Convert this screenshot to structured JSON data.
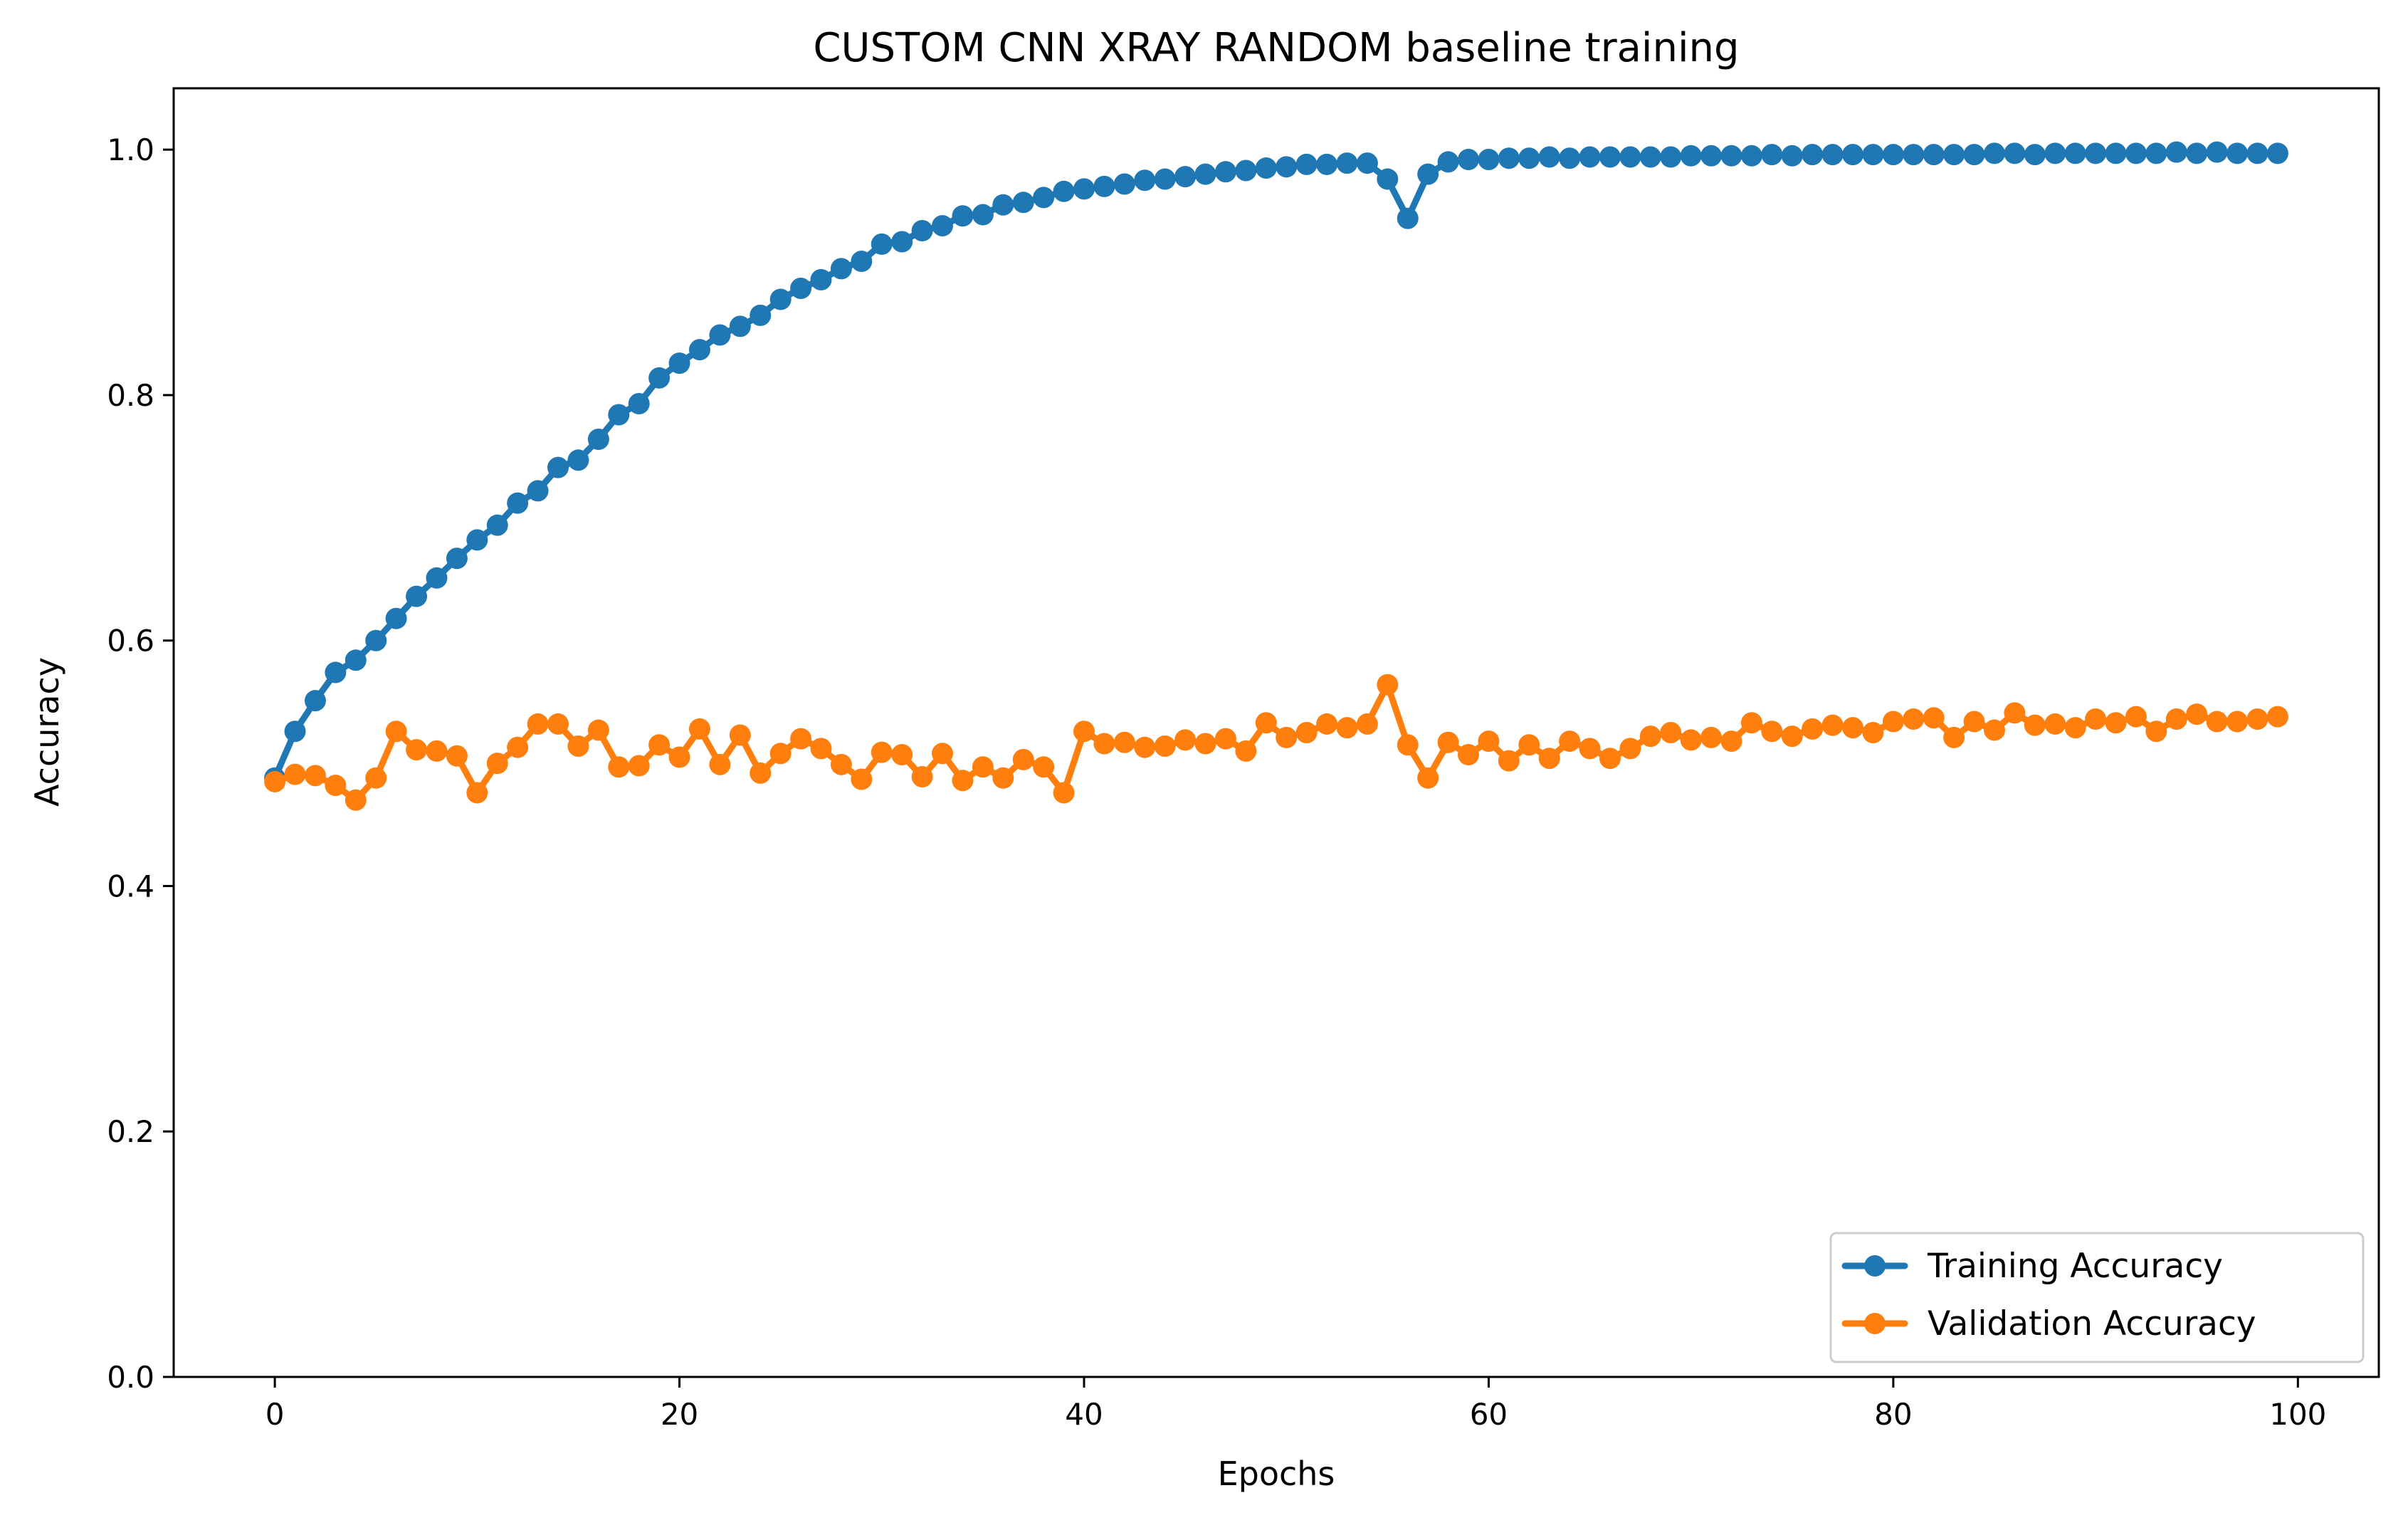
{
  "chart_data": {
    "type": "line",
    "title": "CUSTOM CNN XRAY RANDOM baseline training",
    "xlabel": "Epochs",
    "ylabel": "Accuracy",
    "xlim": [
      -5,
      104
    ],
    "ylim": [
      0,
      1.05
    ],
    "xticks": [
      0,
      20,
      40,
      60,
      80,
      100
    ],
    "yticks": [
      0.0,
      0.2,
      0.4,
      0.6,
      0.8,
      1.0
    ],
    "xtick_labels": [
      "0",
      "20",
      "40",
      "60",
      "80",
      "100"
    ],
    "ytick_labels": [
      "0.0",
      "0.2",
      "0.4",
      "0.6",
      "0.8",
      "1.0"
    ],
    "grid": false,
    "legend_position": "lower-right",
    "x": [
      0,
      1,
      2,
      3,
      4,
      5,
      6,
      7,
      8,
      9,
      10,
      11,
      12,
      13,
      14,
      15,
      16,
      17,
      18,
      19,
      20,
      21,
      22,
      23,
      24,
      25,
      26,
      27,
      28,
      29,
      30,
      31,
      32,
      33,
      34,
      35,
      36,
      37,
      38,
      39,
      40,
      41,
      42,
      43,
      44,
      45,
      46,
      47,
      48,
      49,
      50,
      51,
      52,
      53,
      54,
      55,
      56,
      57,
      58,
      59,
      60,
      61,
      62,
      63,
      64,
      65,
      66,
      67,
      68,
      69,
      70,
      71,
      72,
      73,
      74,
      75,
      76,
      77,
      78,
      79,
      80,
      81,
      82,
      83,
      84,
      85,
      86,
      87,
      88,
      89,
      90,
      91,
      92,
      93,
      94,
      95,
      96,
      97,
      98,
      99
    ],
    "series": [
      {
        "name": "Training Accuracy",
        "color": "#1f77b4",
        "marker": "circle",
        "values": [
          0.488,
          0.526,
          0.551,
          0.574,
          0.584,
          0.6,
          0.618,
          0.636,
          0.651,
          0.667,
          0.682,
          0.694,
          0.712,
          0.722,
          0.741,
          0.747,
          0.764,
          0.784,
          0.793,
          0.814,
          0.826,
          0.837,
          0.849,
          0.856,
          0.865,
          0.878,
          0.887,
          0.894,
          0.903,
          0.909,
          0.923,
          0.925,
          0.934,
          0.938,
          0.946,
          0.947,
          0.955,
          0.957,
          0.961,
          0.966,
          0.968,
          0.97,
          0.972,
          0.975,
          0.976,
          0.978,
          0.98,
          0.982,
          0.983,
          0.985,
          0.986,
          0.988,
          0.988,
          0.989,
          0.989,
          0.976,
          0.944,
          0.98,
          0.99,
          0.992,
          0.992,
          0.993,
          0.993,
          0.994,
          0.993,
          0.994,
          0.994,
          0.994,
          0.994,
          0.994,
          0.995,
          0.995,
          0.995,
          0.995,
          0.996,
          0.995,
          0.996,
          0.996,
          0.996,
          0.996,
          0.996,
          0.996,
          0.996,
          0.996,
          0.996,
          0.997,
          0.997,
          0.996,
          0.997,
          0.997,
          0.997,
          0.997,
          0.997,
          0.997,
          0.998,
          0.997,
          0.998,
          0.997,
          0.997,
          0.997
        ]
      },
      {
        "name": "Validation Accuracy",
        "color": "#ff7f0e",
        "marker": "circle",
        "values": [
          0.485,
          0.491,
          0.49,
          0.482,
          0.47,
          0.488,
          0.526,
          0.511,
          0.51,
          0.506,
          0.476,
          0.5,
          0.513,
          0.532,
          0.532,
          0.514,
          0.527,
          0.497,
          0.498,
          0.515,
          0.505,
          0.528,
          0.499,
          0.523,
          0.492,
          0.508,
          0.52,
          0.512,
          0.499,
          0.487,
          0.509,
          0.507,
          0.489,
          0.508,
          0.486,
          0.497,
          0.488,
          0.503,
          0.497,
          0.476,
          0.526,
          0.516,
          0.517,
          0.513,
          0.514,
          0.519,
          0.516,
          0.52,
          0.51,
          0.533,
          0.521,
          0.525,
          0.532,
          0.529,
          0.532,
          0.564,
          0.515,
          0.488,
          0.517,
          0.507,
          0.518,
          0.502,
          0.515,
          0.504,
          0.518,
          0.512,
          0.504,
          0.512,
          0.522,
          0.525,
          0.519,
          0.521,
          0.518,
          0.533,
          0.526,
          0.522,
          0.528,
          0.531,
          0.529,
          0.525,
          0.534,
          0.536,
          0.537,
          0.521,
          0.534,
          0.527,
          0.541,
          0.531,
          0.532,
          0.529,
          0.536,
          0.533,
          0.538,
          0.526,
          0.536,
          0.54,
          0.534,
          0.534,
          0.536,
          0.538
        ]
      }
    ]
  }
}
